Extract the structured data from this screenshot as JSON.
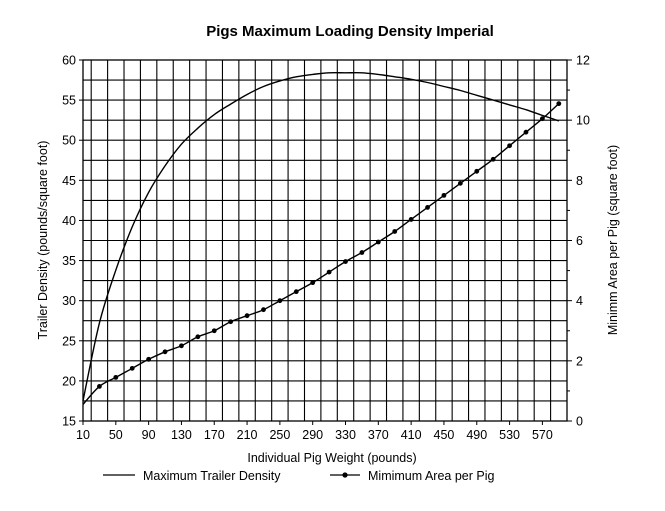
{
  "chart_data": {
    "type": "line",
    "title": "Pigs Maximum Loading Density Imperial",
    "xlabel": "Individual Pig Weight (pounds)",
    "ylabel": "Trailer Density (pounds/square foot)",
    "y2label": "Minimm Area per Pig (square foot)",
    "xlim": [
      10,
      600
    ],
    "ylim": [
      15,
      60
    ],
    "y2lim": [
      0,
      12
    ],
    "x_ticks": [
      10,
      50,
      90,
      130,
      170,
      210,
      250,
      290,
      330,
      370,
      410,
      450,
      490,
      530,
      570
    ],
    "y_ticks": [
      15,
      20,
      25,
      30,
      35,
      40,
      45,
      50,
      55,
      60
    ],
    "y2_ticks": [
      0,
      2,
      4,
      6,
      8,
      10,
      12
    ],
    "grid": true,
    "legend_position": "bottom",
    "series": [
      {
        "name": "Maximum Trailer Density",
        "axis": "left",
        "marker": "none",
        "x": [
          10,
          30,
          50,
          70,
          90,
          110,
          130,
          150,
          170,
          190,
          210,
          230,
          250,
          270,
          290,
          310,
          330,
          350,
          370,
          390,
          410,
          430,
          450,
          470,
          490,
          510,
          530,
          550,
          570,
          590
        ],
        "values": [
          17.5,
          27.2,
          33.8,
          39.2,
          43.5,
          46.8,
          49.5,
          51.5,
          53.2,
          54.5,
          55.7,
          56.7,
          57.4,
          57.9,
          58.2,
          58.4,
          58.4,
          58.4,
          58.2,
          57.9,
          57.6,
          57.2,
          56.7,
          56.2,
          55.6,
          55.0,
          54.4,
          53.8,
          53.1,
          52.4
        ]
      },
      {
        "name": "Mimimum Area per Pig",
        "axis": "right",
        "marker": "dot",
        "x": [
          10,
          30,
          50,
          70,
          90,
          110,
          130,
          150,
          170,
          190,
          210,
          230,
          250,
          270,
          290,
          310,
          330,
          350,
          370,
          390,
          410,
          430,
          450,
          470,
          490,
          510,
          530,
          550,
          570,
          590
        ],
        "values": [
          0.55,
          1.15,
          1.45,
          1.75,
          2.05,
          2.3,
          2.5,
          2.8,
          3.0,
          3.3,
          3.5,
          3.7,
          4.0,
          4.3,
          4.6,
          4.95,
          5.3,
          5.6,
          5.95,
          6.3,
          6.7,
          7.1,
          7.5,
          7.9,
          8.3,
          8.7,
          9.15,
          9.6,
          10.05,
          10.55
        ]
      }
    ]
  }
}
